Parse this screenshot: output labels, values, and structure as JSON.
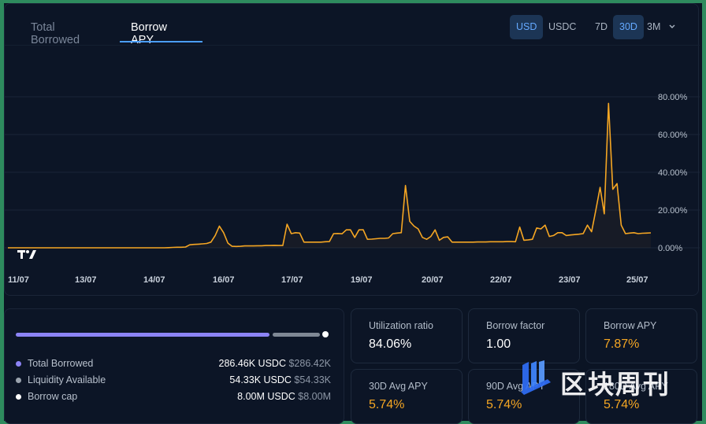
{
  "tabs": [
    {
      "label": "Total Borrowed",
      "active": false
    },
    {
      "label": "Borrow APY",
      "active": true
    }
  ],
  "currency_toggle": [
    {
      "label": "USD",
      "active": true
    },
    {
      "label": "USDC",
      "active": false
    }
  ],
  "range_toggle": [
    {
      "label": "7D",
      "active": false
    },
    {
      "label": "30D",
      "active": true
    },
    {
      "label": "3M",
      "active": false
    }
  ],
  "range_dropdown_icon": "chevron-down-icon",
  "chart_data": {
    "type": "line",
    "title": "",
    "xlabel": "",
    "ylabel": "",
    "x_tick_labels": [
      "11/07",
      "13/07",
      "14/07",
      "16/07",
      "17/07",
      "19/07",
      "20/07",
      "22/07",
      "23/07",
      "25/07"
    ],
    "y_tick_labels": [
      "80.00%",
      "60.00%",
      "40.00%",
      "20.00%",
      "0.00%"
    ],
    "ylim": [
      0,
      80
    ],
    "y_axis_position": "right",
    "grid": true,
    "line_color": "#f5a623",
    "series": [
      {
        "values": [
          0,
          0,
          0,
          0,
          0,
          0,
          0,
          0,
          0,
          0,
          0,
          0,
          0,
          0,
          0,
          0,
          0,
          0,
          0,
          0,
          0,
          0,
          0,
          0,
          0,
          0,
          0,
          0,
          0,
          0,
          0,
          0,
          0,
          0,
          0,
          0,
          0,
          0,
          0.1,
          0.2,
          0.3,
          0.3,
          0.4,
          1.6,
          1.8,
          1.9,
          2.1,
          2.3,
          3.0,
          6.5,
          11.5,
          8.0,
          2.5,
          0.8,
          0.7,
          0.8,
          1.0,
          1.0,
          1.0,
          1.1,
          1.1,
          1.2,
          1.2,
          1.3,
          1.2,
          1.2,
          12.5,
          7.5,
          8.0,
          7.8,
          3.0,
          3.0,
          3.0,
          3.0,
          3.0,
          3.2,
          3.3,
          7.5,
          7.6,
          7.4,
          9.5,
          9.5,
          5.5,
          9.5,
          9.6,
          4.5,
          4.6,
          4.8,
          5.0,
          5.0,
          5.2,
          7.5,
          7.8,
          8.0,
          33.0,
          14.0,
          11.5,
          10.0,
          5.5,
          4.5,
          6.0,
          9.5,
          4.0,
          5.5,
          5.8,
          3.0,
          3.0,
          3.0,
          3.0,
          3.0,
          3.0,
          3.1,
          3.1,
          3.1,
          3.2,
          3.2,
          3.2,
          3.2,
          3.3,
          3.3,
          3.2,
          11.0,
          4.0,
          4.2,
          4.5,
          10.5,
          10.0,
          12.0,
          6.0,
          6.5,
          8.0,
          8.0,
          6.5,
          6.8,
          7.0,
          7.2,
          7.5,
          12.0,
          8.5,
          20.0,
          32.0,
          18.0,
          76.5,
          31.0,
          34.0,
          12.0,
          7.5,
          7.8,
          8.0,
          7.5,
          7.7,
          7.8,
          7.9
        ]
      }
    ]
  },
  "supply_bar": {
    "filled_fraction": 0.835,
    "liquidity_fraction": 0.155,
    "dot_color": "#ffffff"
  },
  "legend": [
    {
      "label": "Total Borrowed",
      "amount": "286.46K USDC",
      "usd": "$286.42K",
      "color": "#8c83f5"
    },
    {
      "label": "Liquidity Available",
      "amount": "54.33K USDC",
      "usd": "$54.33K",
      "color": "#9aa3ae"
    },
    {
      "label": "Borrow cap",
      "amount": "8.00M USDC",
      "usd": "$8.00M",
      "color": "#ffffff"
    }
  ],
  "stats": [
    {
      "label": "Utilization ratio",
      "value": "84.06%",
      "highlight": false
    },
    {
      "label": "Borrow factor",
      "value": "1.00",
      "highlight": false
    },
    {
      "label": "Borrow APY",
      "value": "7.87%",
      "highlight": true
    },
    {
      "label": "30D Avg APY",
      "value": "5.74%",
      "highlight": true
    },
    {
      "label": "90D Avg APY",
      "value": "5.74%",
      "highlight": true
    },
    {
      "label": "180D Avg APY",
      "value": "5.74%",
      "highlight": true
    }
  ],
  "watermark": {
    "text": "区块周刊",
    "icon": "block-weekly-logo-icon"
  },
  "chart_logo": "tradingview-logo-icon"
}
